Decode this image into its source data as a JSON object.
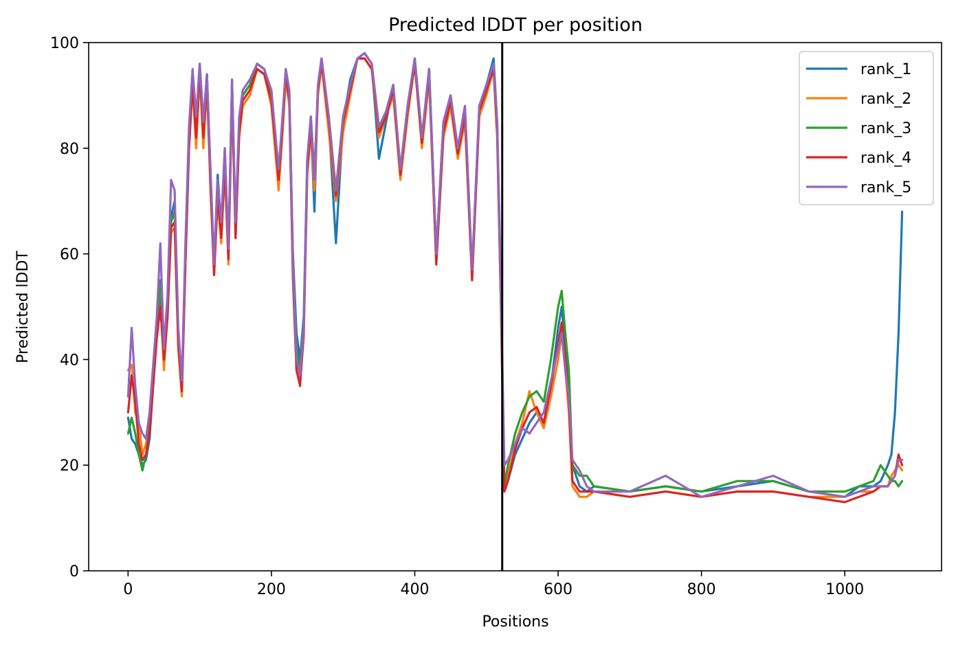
{
  "chart_data": {
    "type": "line",
    "title": "Predicted lDDT per position",
    "xlabel": "Positions",
    "ylabel": "Predicted lDDT",
    "xlim": [
      -55,
      1135
    ],
    "ylim": [
      0,
      100
    ],
    "xticks": [
      0,
      200,
      400,
      600,
      800,
      1000
    ],
    "yticks": [
      0,
      20,
      40,
      60,
      80,
      100
    ],
    "grid": false,
    "legend_position": "top-right",
    "vertical_line": {
      "x": 522,
      "color": "#000000"
    },
    "series": [
      {
        "name": "rank_1",
        "color": "#1f77b4",
        "x": [
          0,
          5,
          10,
          15,
          20,
          25,
          30,
          40,
          45,
          50,
          55,
          60,
          65,
          70,
          75,
          80,
          85,
          90,
          95,
          100,
          105,
          110,
          115,
          120,
          125,
          130,
          135,
          140,
          145,
          150,
          155,
          160,
          170,
          180,
          190,
          200,
          210,
          215,
          220,
          225,
          230,
          235,
          240,
          245,
          250,
          255,
          260,
          265,
          270,
          280,
          290,
          300,
          310,
          320,
          330,
          340,
          350,
          360,
          370,
          380,
          390,
          400,
          410,
          420,
          430,
          440,
          450,
          460,
          470,
          480,
          490,
          500,
          510,
          515,
          520,
          525,
          530,
          540,
          550,
          560,
          570,
          580,
          590,
          600,
          605,
          610,
          615,
          620,
          630,
          640,
          650,
          700,
          750,
          800,
          850,
          900,
          950,
          1000,
          1020,
          1040,
          1050,
          1060,
          1065,
          1070,
          1075,
          1080
        ],
        "values": [
          29,
          25,
          24,
          22,
          20,
          21,
          25,
          45,
          55,
          40,
          50,
          67,
          70,
          45,
          35,
          60,
          82,
          94,
          85,
          96,
          85,
          94,
          75,
          58,
          75,
          65,
          80,
          60,
          93,
          64,
          85,
          90,
          92,
          96,
          95,
          90,
          75,
          85,
          95,
          90,
          60,
          45,
          40,
          48,
          78,
          85,
          68,
          92,
          97,
          85,
          62,
          85,
          93,
          97,
          98,
          96,
          78,
          85,
          92,
          75,
          88,
          97,
          82,
          95,
          60,
          85,
          90,
          80,
          88,
          56,
          88,
          92,
          97,
          85,
          55,
          16,
          17,
          22,
          25,
          28,
          30,
          28,
          35,
          46,
          50,
          42,
          35,
          20,
          16,
          15,
          16,
          15,
          16,
          15,
          16,
          17,
          15,
          14,
          16,
          16,
          17,
          20,
          22,
          30,
          45,
          68
        ]
      },
      {
        "name": "rank_2",
        "color": "#ff7f0e",
        "x": [
          0,
          5,
          10,
          15,
          20,
          25,
          30,
          40,
          45,
          50,
          55,
          60,
          65,
          70,
          75,
          80,
          85,
          90,
          95,
          100,
          105,
          110,
          115,
          120,
          125,
          130,
          135,
          140,
          145,
          150,
          155,
          160,
          170,
          180,
          190,
          200,
          210,
          215,
          220,
          225,
          230,
          235,
          240,
          245,
          250,
          255,
          260,
          265,
          270,
          280,
          290,
          300,
          310,
          320,
          330,
          340,
          350,
          360,
          370,
          380,
          390,
          400,
          410,
          420,
          430,
          440,
          450,
          460,
          470,
          480,
          490,
          500,
          510,
          515,
          520,
          525,
          530,
          540,
          550,
          560,
          570,
          580,
          590,
          600,
          605,
          610,
          615,
          620,
          630,
          640,
          650,
          700,
          750,
          800,
          850,
          900,
          950,
          1000,
          1020,
          1040,
          1050,
          1060,
          1065,
          1070,
          1075,
          1080
        ],
        "values": [
          38,
          39,
          30,
          28,
          22,
          24,
          28,
          44,
          52,
          38,
          48,
          64,
          65,
          42,
          33,
          58,
          80,
          92,
          80,
          94,
          80,
          92,
          72,
          56,
          70,
          62,
          76,
          58,
          90,
          63,
          82,
          88,
          90,
          95,
          94,
          88,
          72,
          82,
          93,
          88,
          55,
          38,
          36,
          44,
          75,
          83,
          72,
          90,
          96,
          83,
          70,
          83,
          90,
          97,
          97,
          95,
          82,
          86,
          90,
          74,
          86,
          96,
          80,
          93,
          58,
          82,
          88,
          78,
          85,
          55,
          86,
          90,
          95,
          82,
          52,
          15,
          18,
          24,
          28,
          34,
          30,
          27,
          33,
          40,
          45,
          38,
          30,
          16,
          14,
          14,
          15,
          14,
          15,
          14,
          15,
          15,
          14,
          14,
          15,
          15,
          16,
          16,
          18,
          19,
          20,
          19
        ]
      },
      {
        "name": "rank_3",
        "color": "#2ca02c",
        "x": [
          0,
          5,
          10,
          15,
          20,
          25,
          30,
          40,
          45,
          50,
          55,
          60,
          65,
          70,
          75,
          80,
          85,
          90,
          95,
          100,
          105,
          110,
          115,
          120,
          125,
          130,
          135,
          140,
          145,
          150,
          155,
          160,
          170,
          180,
          190,
          200,
          210,
          215,
          220,
          225,
          230,
          235,
          240,
          245,
          250,
          255,
          260,
          265,
          270,
          280,
          290,
          300,
          310,
          320,
          330,
          340,
          350,
          360,
          370,
          380,
          390,
          400,
          410,
          420,
          430,
          440,
          450,
          460,
          470,
          480,
          490,
          500,
          510,
          515,
          520,
          525,
          530,
          540,
          550,
          560,
          570,
          580,
          590,
          600,
          605,
          610,
          615,
          620,
          630,
          640,
          650,
          700,
          750,
          800,
          850,
          900,
          950,
          1000,
          1020,
          1040,
          1050,
          1060,
          1065,
          1070,
          1075,
          1080
        ],
        "values": [
          26,
          29,
          26,
          22,
          19,
          22,
          27,
          46,
          54,
          40,
          50,
          66,
          68,
          44,
          34,
          60,
          82,
          94,
          84,
          95,
          84,
          94,
          74,
          57,
          72,
          64,
          78,
          60,
          92,
          64,
          84,
          90,
          92,
          96,
          95,
          90,
          76,
          84,
          94,
          90,
          58,
          42,
          38,
          46,
          78,
          86,
          75,
          92,
          97,
          86,
          72,
          86,
          92,
          97,
          98,
          96,
          84,
          87,
          92,
          76,
          88,
          97,
          82,
          95,
          60,
          84,
          90,
          80,
          87,
          56,
          88,
          92,
          96,
          84,
          53,
          16,
          20,
          26,
          30,
          33,
          34,
          32,
          40,
          50,
          53,
          45,
          38,
          20,
          18,
          18,
          16,
          15,
          16,
          15,
          17,
          17,
          15,
          15,
          16,
          17,
          20,
          18,
          17,
          17,
          16,
          17
        ]
      },
      {
        "name": "rank_4",
        "color": "#d62728",
        "x": [
          0,
          5,
          10,
          15,
          20,
          25,
          30,
          40,
          45,
          50,
          55,
          60,
          65,
          70,
          75,
          80,
          85,
          90,
          95,
          100,
          105,
          110,
          115,
          120,
          125,
          130,
          135,
          140,
          145,
          150,
          155,
          160,
          170,
          180,
          190,
          200,
          210,
          215,
          220,
          225,
          230,
          235,
          240,
          245,
          250,
          255,
          260,
          265,
          270,
          280,
          290,
          300,
          310,
          320,
          330,
          340,
          350,
          360,
          370,
          380,
          390,
          400,
          410,
          420,
          430,
          440,
          450,
          460,
          470,
          480,
          490,
          500,
          510,
          515,
          520,
          525,
          530,
          540,
          550,
          560,
          570,
          580,
          590,
          600,
          605,
          610,
          615,
          620,
          630,
          640,
          650,
          700,
          750,
          800,
          850,
          900,
          950,
          1000,
          1020,
          1040,
          1050,
          1060,
          1065,
          1070,
          1075,
          1080
        ],
        "values": [
          30,
          37,
          32,
          24,
          21,
          22,
          26,
          44,
          50,
          40,
          48,
          65,
          66,
          43,
          34,
          58,
          80,
          92,
          82,
          95,
          82,
          93,
          73,
          56,
          71,
          63,
          77,
          59,
          91,
          63,
          83,
          89,
          91,
          95,
          94,
          89,
          74,
          83,
          94,
          89,
          56,
          38,
          35,
          45,
          76,
          84,
          74,
          91,
          96,
          85,
          71,
          85,
          91,
          97,
          97,
          95,
          83,
          86,
          91,
          75,
          87,
          96,
          81,
          94,
          58,
          83,
          89,
          79,
          86,
          55,
          87,
          91,
          95,
          83,
          52,
          15,
          17,
          23,
          27,
          30,
          31,
          28,
          35,
          43,
          47,
          40,
          32,
          17,
          15,
          15,
          15,
          14,
          15,
          14,
          15,
          15,
          14,
          13,
          14,
          15,
          16,
          16,
          17,
          18,
          22,
          20
        ]
      },
      {
        "name": "rank_5",
        "color": "#9467bd",
        "x": [
          0,
          5,
          10,
          15,
          20,
          25,
          30,
          40,
          45,
          50,
          55,
          60,
          65,
          70,
          75,
          80,
          85,
          90,
          95,
          100,
          105,
          110,
          115,
          120,
          125,
          130,
          135,
          140,
          145,
          150,
          155,
          160,
          170,
          180,
          190,
          200,
          210,
          215,
          220,
          225,
          230,
          235,
          240,
          245,
          250,
          255,
          260,
          265,
          270,
          280,
          290,
          300,
          310,
          320,
          330,
          340,
          350,
          360,
          370,
          380,
          390,
          400,
          410,
          420,
          430,
          440,
          450,
          460,
          470,
          480,
          490,
          500,
          510,
          515,
          520,
          525,
          530,
          540,
          550,
          560,
          570,
          580,
          590,
          600,
          605,
          610,
          615,
          620,
          630,
          640,
          650,
          700,
          750,
          800,
          850,
          900,
          950,
          1000,
          1020,
          1040,
          1050,
          1060,
          1065,
          1070,
          1075,
          1080
        ],
        "values": [
          33,
          46,
          35,
          28,
          26,
          25,
          30,
          48,
          62,
          42,
          52,
          74,
          72,
          46,
          36,
          62,
          84,
          95,
          86,
          96,
          85,
          94,
          76,
          58,
          74,
          66,
          80,
          61,
          93,
          66,
          86,
          91,
          93,
          96,
          95,
          91,
          76,
          85,
          95,
          91,
          58,
          40,
          37,
          46,
          78,
          86,
          74,
          92,
          97,
          86,
          72,
          86,
          92,
          97,
          98,
          96,
          84,
          87,
          92,
          76,
          88,
          97,
          82,
          95,
          60,
          85,
          90,
          80,
          88,
          57,
          88,
          92,
          96,
          85,
          54,
          20,
          21,
          24,
          27,
          26,
          28,
          30,
          36,
          42,
          45,
          38,
          33,
          21,
          19,
          16,
          15,
          15,
          18,
          14,
          16,
          18,
          15,
          14,
          15,
          16,
          16,
          16,
          17,
          18,
          21,
          21
        ]
      }
    ]
  }
}
